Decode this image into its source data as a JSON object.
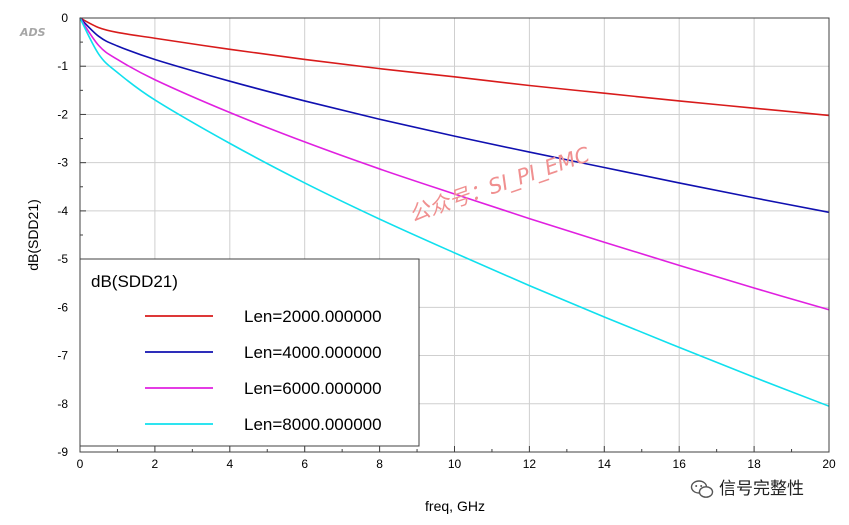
{
  "tool_tag": "ADS",
  "watermark": "公众号：SI_PI_EMC",
  "footer_brand": "信号完整性",
  "chart_data": {
    "type": "line",
    "title": "",
    "xlabel": "freq, GHz",
    "ylabel": "dB(SDD21)",
    "xlim": [
      0,
      20
    ],
    "ylim": [
      -9,
      0
    ],
    "x_ticks": [
      0,
      2,
      4,
      6,
      8,
      10,
      12,
      14,
      16,
      18,
      20
    ],
    "y_ticks": [
      0,
      -1,
      -2,
      -3,
      -4,
      -5,
      -6,
      -7,
      -8,
      -9
    ],
    "x_minor_step": 1,
    "y_minor_step": 0.5,
    "grid": true,
    "legend": {
      "title": "dB(SDD21)",
      "placement": "bottom-left"
    },
    "series": [
      {
        "name": "Len=2000.000000",
        "color": "#d81b1b",
        "x": [
          0,
          0.5,
          1,
          2,
          4,
          6,
          8,
          10,
          12,
          14,
          16,
          18,
          20
        ],
        "values": [
          0,
          -0.2,
          -0.3,
          -0.42,
          -0.65,
          -0.86,
          -1.05,
          -1.22,
          -1.4,
          -1.56,
          -1.72,
          -1.87,
          -2.02
        ]
      },
      {
        "name": "Len=4000.000000",
        "color": "#1010b0",
        "x": [
          0,
          0.5,
          1,
          2,
          4,
          6,
          8,
          10,
          12,
          14,
          16,
          18,
          20
        ],
        "values": [
          0,
          -0.38,
          -0.58,
          -0.86,
          -1.31,
          -1.72,
          -2.1,
          -2.45,
          -2.78,
          -3.1,
          -3.42,
          -3.73,
          -4.03
        ]
      },
      {
        "name": "Len=6000.000000",
        "color": "#e020e0",
        "x": [
          0,
          0.5,
          1,
          2,
          4,
          6,
          8,
          10,
          12,
          14,
          16,
          18,
          20
        ],
        "values": [
          0,
          -0.57,
          -0.86,
          -1.28,
          -1.96,
          -2.57,
          -3.13,
          -3.65,
          -4.16,
          -4.65,
          -5.13,
          -5.6,
          -6.05
        ]
      },
      {
        "name": "Len=8000.000000",
        "color": "#10e0ee",
        "x": [
          0,
          0.5,
          1,
          2,
          4,
          6,
          8,
          10,
          12,
          14,
          16,
          18,
          20
        ],
        "values": [
          0,
          -0.75,
          -1.13,
          -1.7,
          -2.6,
          -3.42,
          -4.17,
          -4.87,
          -5.55,
          -6.2,
          -6.83,
          -7.45,
          -8.05
        ]
      }
    ]
  }
}
